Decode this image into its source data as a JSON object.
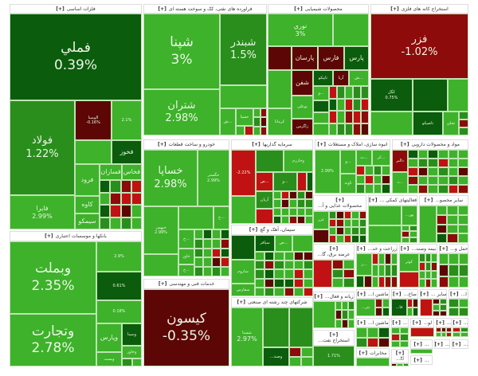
{
  "colors": {
    "strong_green": "#3db22a",
    "green": "#2a8e1c",
    "dark_green": "#0b5c0c",
    "red": "#c01212",
    "dark_red": "#5c0606",
    "deep_red": "#8d0b0b"
  },
  "expand_marker": "[+]",
  "groups": [
    {
      "title": "فلزات اساسی",
      "tiles": [
        {
          "name": "فملي",
          "change": "0.39%"
        },
        {
          "name": "فولاد",
          "change": "1.22%"
        },
        {
          "name": "فايرا",
          "change": "2.99%"
        },
        {
          "name": "الومينا",
          "change": "-0.16%"
        },
        {
          "name": "فخوز"
        },
        {
          "name": "فرود"
        },
        {
          "name": "فسازان"
        },
        {
          "name": "فخاس"
        },
        {
          "name": "كاوه"
        },
        {
          "name": "سيمكو"
        },
        {
          "change": "2.1%"
        }
      ]
    },
    {
      "title": "بانکها و موسسات اعتباری",
      "tiles": [
        {
          "name": "وبملت",
          "change": "2.35%"
        },
        {
          "name": "وتجارت",
          "change": "2.78%"
        },
        {
          "change": "2.9%"
        },
        {
          "change": "0.61%"
        },
        {
          "change": "0.18%"
        },
        {
          "name": "وپارس"
        },
        {
          "name": "وسينا"
        },
        {
          "name": "وخاور"
        },
        {
          "name": "ويست"
        }
      ]
    },
    {
      "title": "فراورده های نفتی، کک و سوخت هسته ای",
      "tiles": [
        {
          "name": "شپنا",
          "change": "3%"
        },
        {
          "name": "شتران",
          "change": "2.98%"
        },
        {
          "name": "شبندر",
          "change": "1.5%"
        },
        {
          "name": "ش..."
        },
        {
          "name": "حسيا"
        }
      ]
    },
    {
      "title": "خودرو و ساخت قطعات",
      "tiles": [
        {
          "name": "خساپا",
          "change": "2.98%"
        },
        {
          "name": "خگستر",
          "change": "2.99%"
        },
        {
          "name": "خبهمن",
          "change": "2.99%"
        },
        {
          "name": "خ..."
        },
        {
          "name": "خ..."
        },
        {
          "name": "خاور"
        },
        {
          "name": "خ..."
        }
      ]
    },
    {
      "title": "خدمات فنی و مهندسی",
      "tiles": [
        {
          "name": "کیسون",
          "change": "-0.35%"
        }
      ]
    },
    {
      "title": "محصولات شیمیایی",
      "tiles": [
        {
          "name": "نوري",
          "change": "3%"
        },
        {
          "name": "پارسان"
        },
        {
          "name": "فارس"
        },
        {
          "name": "پارس"
        },
        {
          "name": "شفن"
        },
        {
          "name": "تاپيكو"
        },
        {
          "name": "آريا"
        },
        {
          "name": "ش..."
        },
        {
          "name": "بوعلي"
        },
        {
          "name": "زاگرس"
        },
        {
          "name": "كرمانا"
        },
        {
          "name": "و..."
        }
      ]
    },
    {
      "title": "استخراج کانه های فلزی",
      "tiles": [
        {
          "name": "فزر",
          "change": "-1.02%"
        },
        {
          "name": "كگل",
          "change": "0.75%"
        },
        {
          "name": "تاصيكو"
        },
        {
          "name": "تجلي"
        }
      ]
    },
    {
      "title": "سرمایه گذاریها",
      "tiles": [
        {
          "change": "-2.22%"
        },
        {
          "name": "وخارزم"
        },
        {
          "name": "ص..."
        },
        {
          "name": "و..."
        },
        {
          "name": "آريان"
        }
      ]
    },
    {
      "title": "سیمان، آهک و گچ",
      "tiles": [
        {
          "name": "سپاقر"
        },
        {
          "name": "ص..."
        },
        {
          "name": "ساروم"
        },
        {
          "name": "سفارس"
        }
      ]
    },
    {
      "title": "شرکتهای چند رشته ای صنعتی",
      "tiles": [
        {
          "name": "شستا",
          "change": "2.97%"
        },
        {
          "name": "...وصند"
        }
      ]
    },
    {
      "title": "انبوه سازی، املاک و مستغلات",
      "tiles": [
        {
          "change": "2.99%"
        },
        {
          "name": "و..."
        },
        {
          "name": "ث..."
        },
        {
          "name": "كر..."
        },
        {
          "name": "ثاوند"
        }
      ]
    },
    {
      "title": "مواد و محصولات دارویی",
      "tiles": [
        {
          "name": "دالبر"
        },
        {
          "name": "د..."
        }
      ]
    },
    {
      "title": "...محصولات غذایی و آ",
      "tiles": [
        {
          "name": "غزر"
        }
      ]
    },
    {
      "title": "... فعالیتهای کمکی",
      "tiles": [
        {
          "name": "...پور"
        }
      ]
    },
    {
      "title": "...سایر محصو",
      "tiles": []
    },
    {
      "title": "...عرضه برق، گا",
      "tiles": []
    },
    {
      "title": "...زراعت و خد",
      "tiles": [
        {
          "name": "ز..."
        }
      ]
    },
    {
      "title": "...بیمه وصند",
      "tiles": [
        {
          "name": "كوثر"
        }
      ]
    },
    {
      "title": "...حمل و",
      "tiles": []
    },
    {
      "title": "...زیانه و فعال",
      "tiles": [
        {
          "name": "...بتر"
        }
      ]
    },
    {
      "title": "...استخراج نفت",
      "tiles": [
        {
          "change": "1.71%"
        }
      ]
    },
    {
      "title": "...ماشین ا",
      "tiles": []
    },
    {
      "title": "...صاخ",
      "tiles": [
        {
          "name": "...فا"
        }
      ]
    },
    {
      "title": "... سایر",
      "tiles": []
    },
    {
      "title": "...ا",
      "tiles": []
    },
    {
      "title": "...ماشین ا",
      "tiles": []
    },
    {
      "title": "مخابرات",
      "tiles": []
    },
    {
      "title": "...",
      "tiles": []
    },
    {
      "title": "...لو",
      "tiles": []
    },
    {
      "title": "...",
      "tiles": []
    },
    {
      "title": "...",
      "tiles": []
    },
    {
      "title": "...",
      "tiles": []
    },
    {
      "title": "...",
      "tiles": []
    },
    {
      "title": "...",
      "tiles": []
    },
    {
      "title": "...tl",
      "tiles": []
    },
    {
      "title": "...",
      "tiles": []
    }
  ]
}
